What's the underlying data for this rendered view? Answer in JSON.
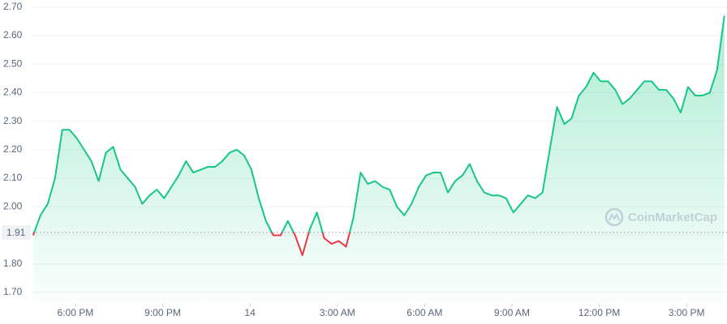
{
  "chart_data": {
    "type": "line",
    "x": [
      16.55,
      16.8,
      17.05,
      17.3,
      17.55,
      17.8,
      18.05,
      18.3,
      18.55,
      18.8,
      19.05,
      19.3,
      19.55,
      19.8,
      20.05,
      20.3,
      20.55,
      20.8,
      21.05,
      21.3,
      21.55,
      21.8,
      22.05,
      22.3,
      22.55,
      22.8,
      23.05,
      23.3,
      23.55,
      23.8,
      24.05,
      24.3,
      24.55,
      24.8,
      25.05,
      25.3,
      25.55,
      25.8,
      26.05,
      26.3,
      26.55,
      26.8,
      27.05,
      27.3,
      27.55,
      27.8,
      28.05,
      28.3,
      28.55,
      28.8,
      29.05,
      29.3,
      29.55,
      29.8,
      30.05,
      30.3,
      30.55,
      30.8,
      31.05,
      31.3,
      31.55,
      31.8,
      32.05,
      32.3,
      32.55,
      32.8,
      33.05,
      33.3,
      33.55,
      33.8,
      34.05,
      34.3,
      34.55,
      34.8,
      35.05,
      35.3,
      35.55,
      35.8,
      36.05,
      36.3,
      36.55,
      36.8,
      37.05,
      37.3,
      37.55,
      37.8,
      38.05,
      38.3,
      38.55,
      38.8,
      39.05,
      39.3,
      39.55,
      39.8,
      40.05,
      40.3
    ],
    "series": [
      {
        "color": "#16c784",
        "below_color": "#ea3943",
        "values": [
          1.9,
          1.97,
          2.01,
          2.1,
          2.27,
          2.27,
          2.24,
          2.2,
          2.16,
          2.09,
          2.19,
          2.21,
          2.13,
          2.1,
          2.07,
          2.01,
          2.04,
          2.06,
          2.03,
          2.07,
          2.11,
          2.16,
          2.12,
          2.13,
          2.14,
          2.14,
          2.16,
          2.19,
          2.2,
          2.18,
          2.13,
          2.03,
          1.95,
          1.9,
          1.9,
          1.95,
          1.9,
          1.83,
          1.92,
          1.98,
          1.89,
          1.87,
          1.88,
          1.86,
          1.96,
          2.12,
          2.08,
          2.09,
          2.07,
          2.06,
          2.0,
          1.97,
          2.01,
          2.07,
          2.11,
          2.12,
          2.12,
          2.05,
          2.09,
          2.11,
          2.15,
          2.09,
          2.05,
          2.04,
          2.04,
          2.03,
          1.98,
          2.01,
          2.04,
          2.03,
          2.05,
          2.2,
          2.35,
          2.29,
          2.31,
          2.39,
          2.42,
          2.47,
          2.44,
          2.44,
          2.41,
          2.36,
          2.38,
          2.41,
          2.44,
          2.44,
          2.41,
          2.41,
          2.38,
          2.33,
          2.42,
          2.39,
          2.39,
          2.4,
          2.48,
          2.67
        ]
      }
    ],
    "reference": 1.91,
    "xlim": [
      16.525,
      40.39
    ],
    "xticks": [
      {
        "value": 18,
        "label": "6:00 PM"
      },
      {
        "value": 21,
        "label": "9:00 PM"
      },
      {
        "value": 24,
        "label": "14"
      },
      {
        "value": 27,
        "label": "3:00 AM"
      },
      {
        "value": 30,
        "label": "6:00 AM"
      },
      {
        "value": 33,
        "label": "9:00 AM"
      },
      {
        "value": 36,
        "label": "12:00 PM"
      },
      {
        "value": 39,
        "label": "3:00 PM"
      }
    ],
    "ylim": [
      1.66,
      2.725
    ],
    "yticks": [
      {
        "value": 1.7,
        "label": "1.70"
      },
      {
        "value": 1.8,
        "label": "1.80"
      },
      {
        "value": 1.9,
        "label": "1.90"
      },
      {
        "value": 2.0,
        "label": "2.00"
      },
      {
        "value": 2.1,
        "label": "2.10"
      },
      {
        "value": 2.2,
        "label": "2.20"
      },
      {
        "value": 2.3,
        "label": "2.30"
      },
      {
        "value": 2.4,
        "label": "2.40"
      },
      {
        "value": 2.5,
        "label": "2.50"
      },
      {
        "value": 2.6,
        "label": "2.60"
      },
      {
        "value": 2.7,
        "label": "2.70"
      }
    ],
    "grid": true,
    "watermark": "CoinMarketCap"
  }
}
